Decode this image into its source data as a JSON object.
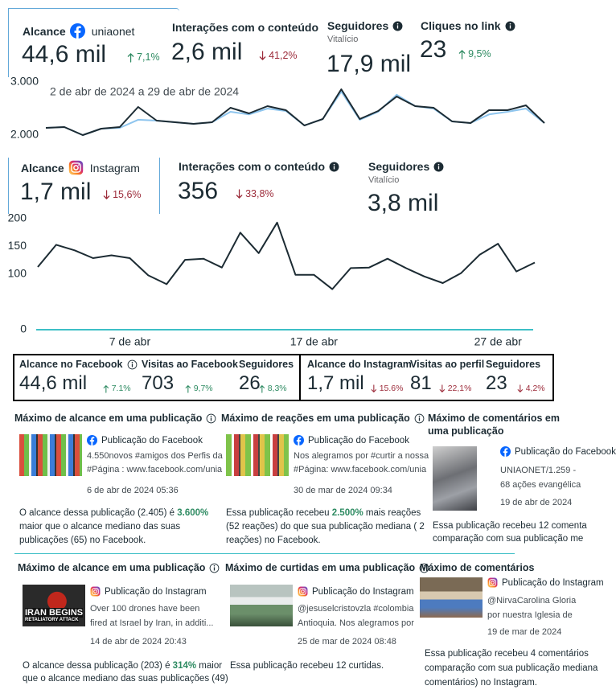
{
  "facebook_overview": {
    "icon": "facebook",
    "metrics": [
      {
        "label": "Alcance",
        "account": "uniaonet",
        "value": "44,6 mil",
        "change": {
          "text": "7,1%",
          "direction": "up"
        }
      },
      {
        "label": "Interações com o conteúdo",
        "value": "2,6 mil",
        "change": {
          "text": "41,2%",
          "direction": "down"
        }
      },
      {
        "label": "Seguidores",
        "info": true,
        "note": "Vitalício",
        "value": "17,9 mil"
      },
      {
        "label": "Cliques no link",
        "info": true,
        "value": "23",
        "change": {
          "text": "9,5%",
          "direction": "up"
        }
      }
    ]
  },
  "chart_data": [
    {
      "type": "line",
      "subtitle": "2 de abr de 2024 a 29 de abr de 2024",
      "categories": [
        null,
        null,
        null,
        null,
        null,
        null,
        null,
        null,
        null,
        null,
        null,
        null,
        null,
        null,
        null,
        null,
        null,
        null,
        null,
        null,
        null,
        null,
        null,
        null,
        null,
        null,
        null,
        null
      ],
      "series": [
        {
          "color": "#8ec5ee",
          "values": [
            2136,
            2152,
            2000,
            2121,
            2136,
            2290,
            2273,
            2242,
            2212,
            2242,
            2440,
            2390,
            2500,
            2455,
            2182,
            2303,
            2820,
            2290,
            2440,
            2760,
            2545,
            2500,
            2258,
            2227,
            2390,
            2440,
            2500,
            2227
          ]
        },
        {
          "color": "#1c2b33",
          "values": [
            2136,
            2152,
            2000,
            2121,
            2152,
            2530,
            2273,
            2242,
            2212,
            2242,
            2515,
            2409,
            2545,
            2470,
            2182,
            2303,
            2864,
            2303,
            2455,
            2727,
            2545,
            2515,
            2258,
            2227,
            2470,
            2470,
            2561,
            2227
          ]
        }
      ],
      "ylim": [
        2000,
        3000
      ],
      "yticks": [
        {
          "value": 3000,
          "label": "3.000"
        },
        {
          "value": 2000,
          "label": "2.000"
        }
      ]
    },
    {
      "type": "line",
      "categories": [
        null,
        null,
        null,
        null,
        null,
        "7 de abr",
        null,
        null,
        null,
        null,
        null,
        null,
        null,
        null,
        null,
        "17 de abr",
        null,
        null,
        null,
        null,
        null,
        null,
        null,
        null,
        null,
        "27 de abr",
        null,
        null
      ],
      "values": [
        113,
        153,
        143,
        129,
        134,
        129,
        98,
        82,
        126,
        128,
        112,
        175,
        138,
        193,
        99,
        99,
        73,
        111,
        112,
        128,
        111,
        96,
        84,
        102,
        135,
        155,
        105,
        121
      ],
      "color": "#1c2b33",
      "x_axis_color": "#3dbfc6",
      "ylim": [
        0,
        200
      ],
      "yticks": [
        0,
        100,
        150,
        200
      ]
    }
  ],
  "instagram_overview": {
    "icon": "instagram",
    "metrics": [
      {
        "label": "Alcance",
        "account": "Instagram",
        "value": "1,7 mil",
        "change": {
          "text": "15,6%",
          "direction": "down"
        }
      },
      {
        "label": "Interações com o conteúdo",
        "info": true,
        "value": "356",
        "change": {
          "text": "33,8%",
          "direction": "down"
        }
      },
      {
        "label": "Seguidores",
        "info": true,
        "note": "Vitalício",
        "value": "3,8 mil"
      }
    ]
  },
  "summary": {
    "facebook": [
      {
        "label": "Alcance no Facebook",
        "info": true,
        "value": "44,6 mil",
        "change": {
          "text": "7.1%",
          "direction": "up"
        }
      },
      {
        "label": "Visitas ao Facebook",
        "value": "703",
        "change": {
          "text": "9,7%",
          "direction": "up"
        }
      },
      {
        "label": "Seguidores",
        "value": "26",
        "change": {
          "text": "8,3%",
          "direction": "up"
        }
      }
    ],
    "instagram": [
      {
        "label": "Alcance do Instagram",
        "value": "1,7 mil",
        "change": {
          "text": "15.6%",
          "direction": "down"
        }
      },
      {
        "label": "Visitas ao perfil",
        "value": "81",
        "change": {
          "text": "22,1%",
          "direction": "down"
        }
      },
      {
        "label": "Seguidores",
        "value": "23",
        "change": {
          "text": "4,2%",
          "direction": "down"
        }
      }
    ]
  },
  "posts": [
    {
      "title": "Máximo de alcance em uma publicação",
      "info": true,
      "icon": "facebook",
      "source": "Publicação do Facebook",
      "lines": [
        "4.550novos #amigos dos Perfis da",
        "#Página : www.facebook.com/unia"
      ],
      "date": "6 de abr de 2024 05:36",
      "summary": [
        [
          "O alcance dessa publicação (2.405) é ",
          {
            "bold": "3.600%"
          }
        ],
        [
          "maior que o alcance mediano das suas"
        ],
        [
          "publicações (65) no Facebook."
        ]
      ]
    },
    {
      "title": "Máximo de reações em uma publicação",
      "info": true,
      "icon": "facebook",
      "source": "Publicação do Facebook",
      "lines": [
        "Nos alegramos por #curtir a nossa",
        "#Página: www.facebook.com/unia"
      ],
      "date": "30 de mar de 2024 09:34",
      "summary": [
        [
          "Essa publicação recebeu ",
          {
            "bold": "2.500%"
          },
          " mais reações"
        ],
        [
          "(52 reações) do que sua publicação mediana ( 2"
        ],
        [
          "reações) no Facebook."
        ]
      ]
    },
    {
      "title": "Máximo de comentários em uma publicação",
      "icon": "facebook",
      "source": "Publicação do Facebook",
      "lines": [
        "UNIAONET/1.259 -",
        "68 ações evangélica"
      ],
      "date": "19 de abr de 2024",
      "summary": [
        [
          "Essa publicação recebeu 12 comenta"
        ],
        [
          "comparação com sua publicação me"
        ]
      ]
    },
    {
      "title": "Máximo de alcance em uma publicação",
      "info": true,
      "icon": "instagram",
      "source": "Publicação do Instagram",
      "thumbnail_text": [
        "IRAN BEGINS",
        "RETALIATORY ATTACK"
      ],
      "lines": [
        "Over 100 drones have been",
        "fired at Israel by Iran, in additi..."
      ],
      "date": "14 de abr de 2024 20:43",
      "summary": [
        [
          "O alcance dessa publicação (203) é ",
          {
            "bold": "314%"
          },
          " maior"
        ],
        [
          "que o alcance mediano das suas publicações (49)"
        ]
      ]
    },
    {
      "title": "Máximo de curtidas em uma publicação",
      "info": true,
      "icon": "instagram",
      "source": "Publicação do Instagram",
      "lines": [
        "@jesuselcristovzla #colombia",
        "Antioquia. Nos alegramos por"
      ],
      "date": "25 de mar de 2024 08:48",
      "summary": [
        [
          "Essa publicação recebeu 12 curtidas."
        ]
      ]
    },
    {
      "title": "Máximo de comentários",
      "icon": "instagram",
      "source": "Publicação do Instagram",
      "lines": [
        "@NirvaCarolina Gloria",
        "por nuestra Iglesia de"
      ],
      "date": "19 de mar de 2024",
      "summary": [
        [
          "Essa publicação recebeu 4 comentários"
        ],
        [
          "comparação com sua publicação mediana"
        ],
        [
          "comentários) no Instagram."
        ]
      ]
    }
  ]
}
